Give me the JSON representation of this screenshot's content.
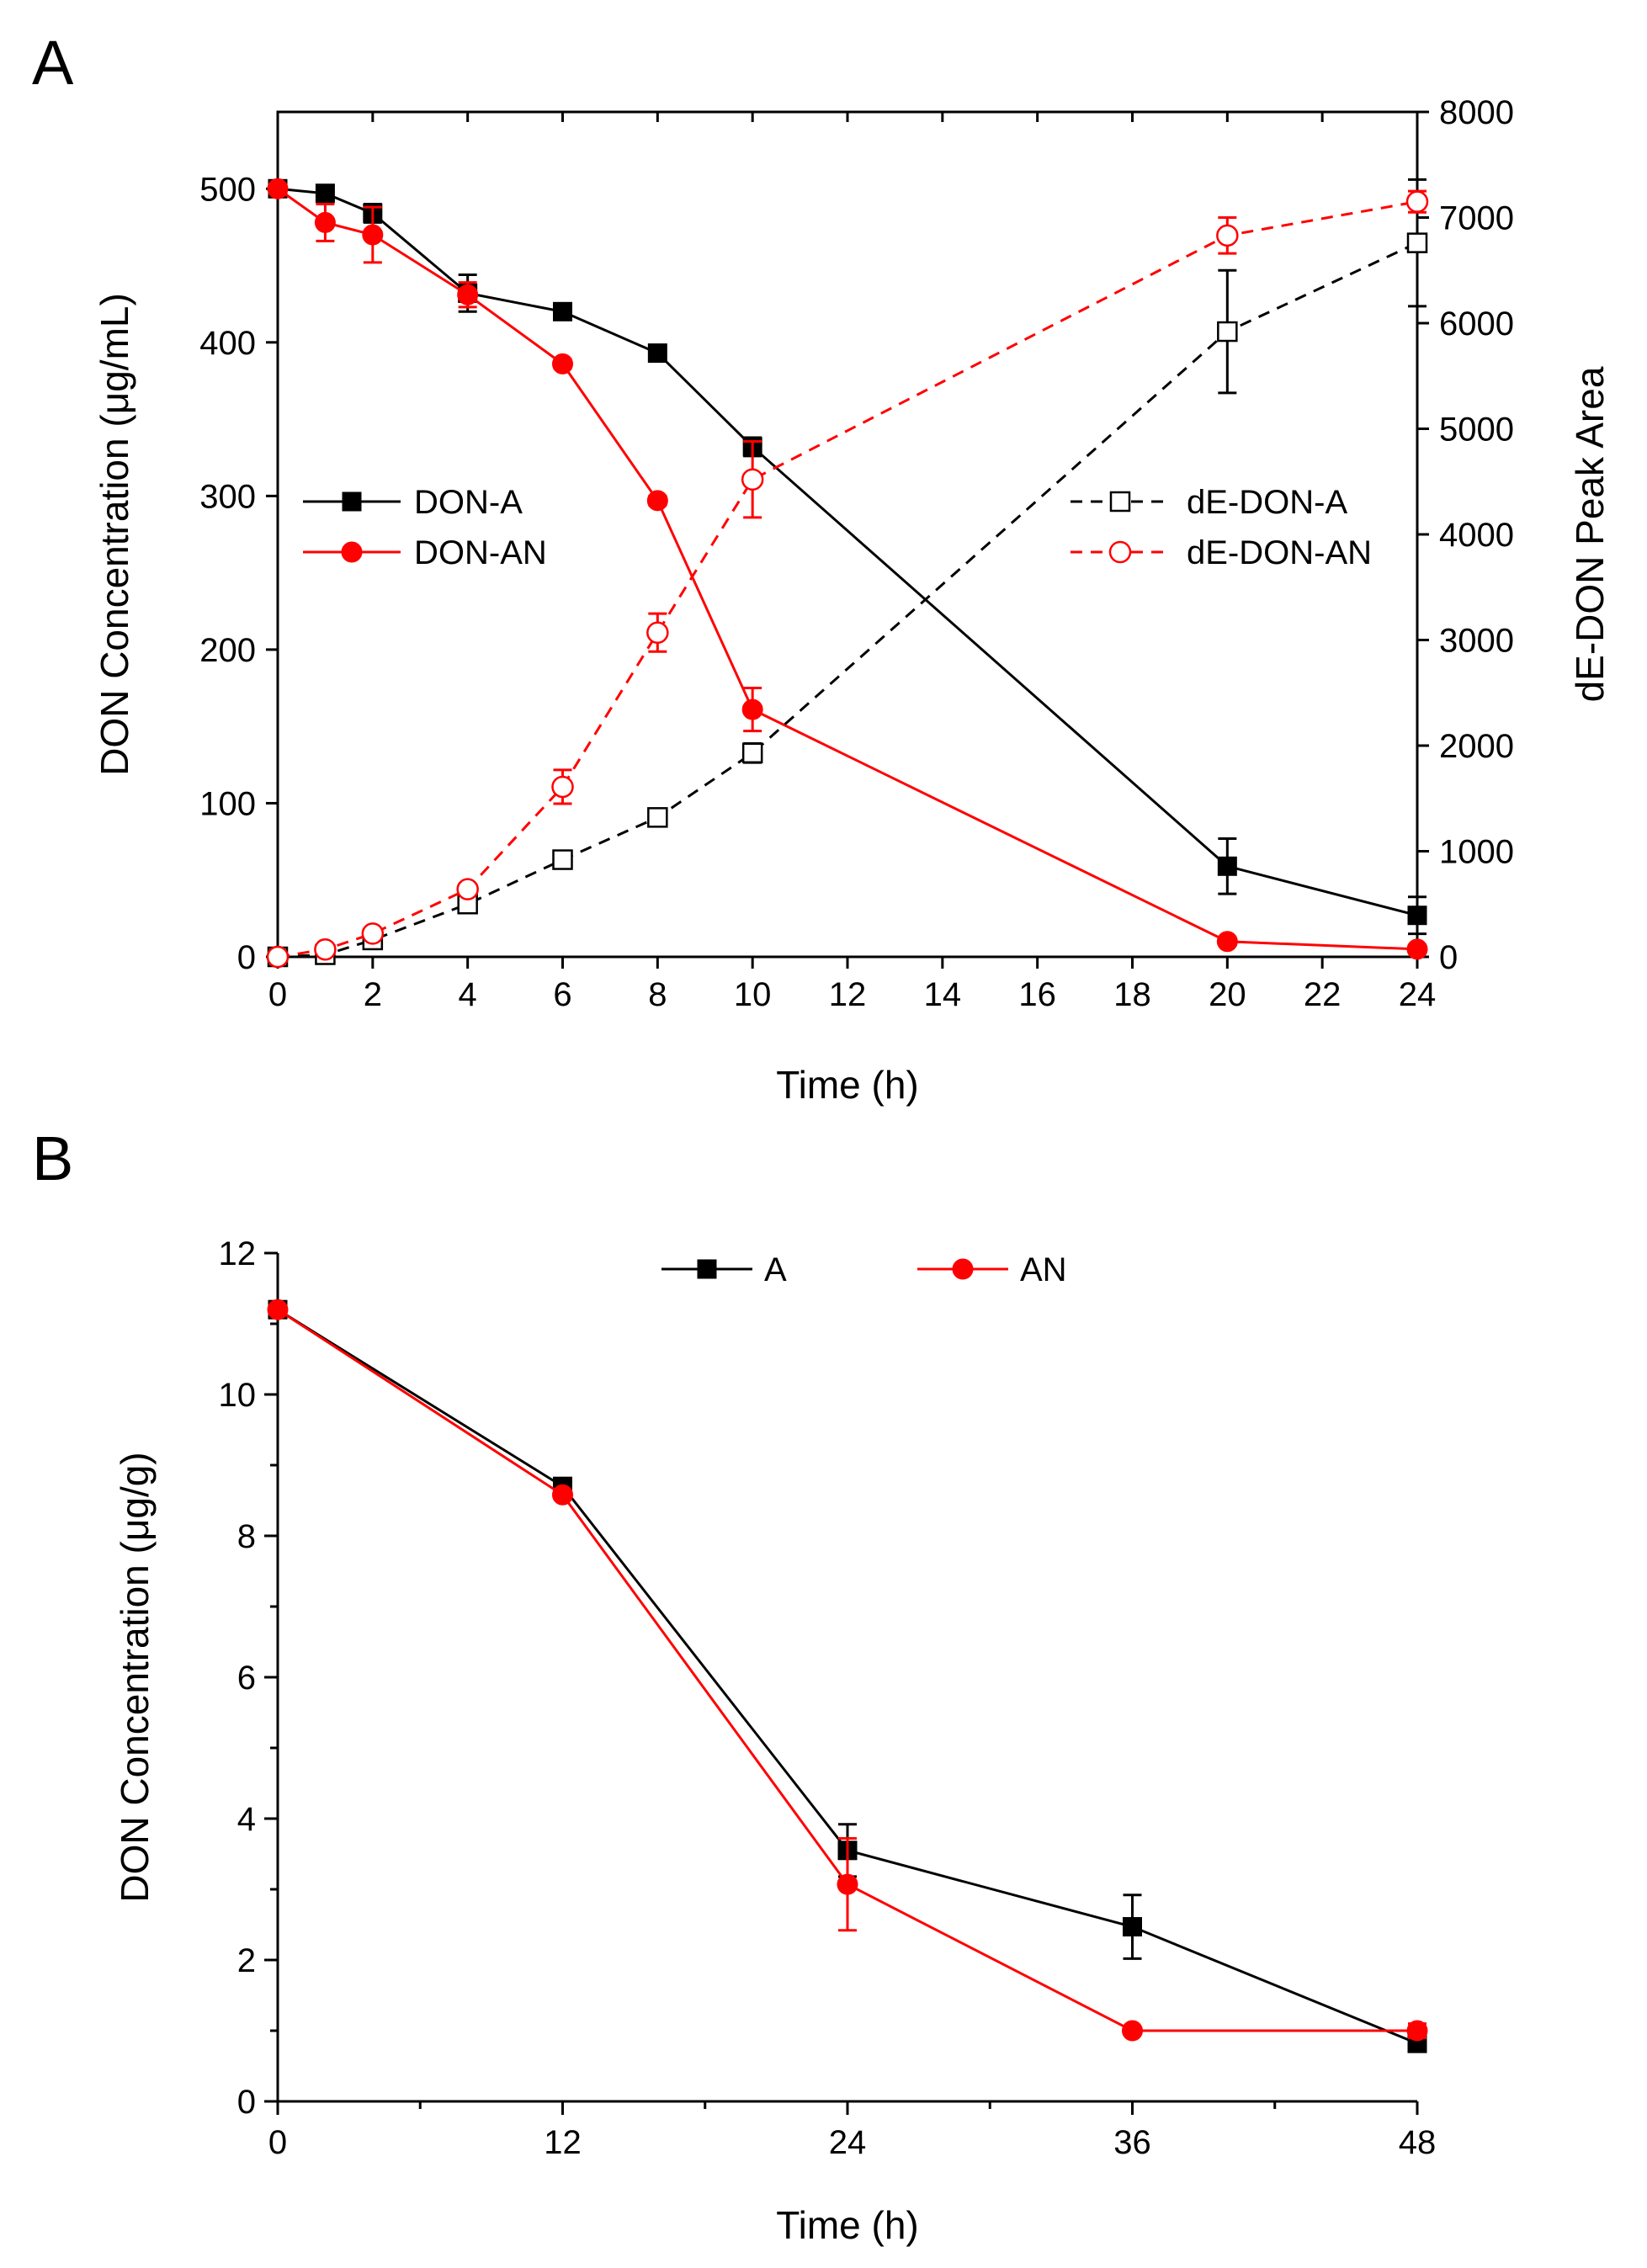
{
  "chart_data": [
    {
      "panel": "A",
      "type": "line",
      "xlabel": "Time (h)",
      "ylabel": "DON Concentration (μg/mL)",
      "y2label": "dE-DON Peak Area",
      "xlim": [
        0,
        24
      ],
      "ylim": [
        0,
        550
      ],
      "y2lim": [
        0,
        8000
      ],
      "xticks": [
        0,
        2,
        4,
        6,
        8,
        10,
        12,
        14,
        16,
        18,
        20,
        22,
        24
      ],
      "yticks": [
        0,
        100,
        200,
        300,
        400,
        500
      ],
      "y2ticks": [
        0,
        1000,
        2000,
        3000,
        4000,
        5000,
        6000,
        7000,
        8000
      ],
      "x": [
        0,
        1,
        2,
        4,
        6,
        8,
        10,
        20,
        24
      ],
      "series": [
        {
          "name": "DON-A",
          "axis": "left",
          "color": "#000000",
          "marker": "square-filled",
          "dash": false,
          "values": [
            500,
            497,
            484,
            432,
            420,
            393,
            332,
            59,
            27
          ],
          "errors": [
            0,
            3,
            6,
            12,
            3,
            3,
            6,
            18,
            12
          ]
        },
        {
          "name": "DON-AN",
          "axis": "left",
          "color": "#ff0000",
          "marker": "circle-filled",
          "dash": false,
          "values": [
            500,
            478,
            470,
            431,
            386,
            297,
            161,
            10,
            5
          ],
          "errors": [
            0,
            12,
            18,
            8,
            3,
            3,
            14,
            0,
            0
          ]
        },
        {
          "name": "dE-DON-A",
          "axis": "right",
          "color": "#000000",
          "marker": "square-open",
          "dash": true,
          "values": [
            0,
            20,
            160,
            500,
            920,
            1320,
            1930,
            5920,
            6760
          ],
          "errors": [
            0,
            0,
            0,
            60,
            60,
            40,
            90,
            580,
            600
          ]
        },
        {
          "name": "dE-DON-AN",
          "axis": "right",
          "color": "#ff0000",
          "marker": "circle-open",
          "dash": true,
          "values": [
            0,
            70,
            220,
            640,
            1610,
            3070,
            4520,
            6830,
            7150
          ],
          "errors": [
            0,
            0,
            0,
            0,
            160,
            180,
            360,
            170,
            100
          ]
        }
      ],
      "legend_left": [
        "DON-A",
        "DON-AN"
      ],
      "legend_right": [
        "dE-DON-A",
        "dE-DON-AN"
      ]
    },
    {
      "panel": "B",
      "type": "line",
      "xlabel": "Time (h)",
      "ylabel": "DON Concentration (μg/g)",
      "xlim": [
        0,
        48
      ],
      "ylim": [
        0,
        12
      ],
      "xticks": [
        0,
        12,
        24,
        36,
        48
      ],
      "xminor": [
        6,
        18,
        30,
        42
      ],
      "yticks": [
        0,
        2,
        4,
        6,
        8,
        10,
        12
      ],
      "x": [
        0,
        12,
        24,
        36,
        48
      ],
      "series": [
        {
          "name": "A",
          "color": "#000000",
          "marker": "square-filled",
          "values": [
            11.2,
            8.7,
            3.55,
            2.47,
            0.82
          ],
          "errors": [
            0,
            0,
            0.37,
            0.45,
            0.1
          ]
        },
        {
          "name": "AN",
          "color": "#ff0000",
          "marker": "circle-filled",
          "values": [
            11.2,
            8.58,
            3.07,
            1.0,
            1.0
          ],
          "errors": [
            0,
            0,
            0.65,
            0,
            0.1
          ]
        }
      ],
      "legend": [
        "A",
        "AN"
      ]
    }
  ]
}
